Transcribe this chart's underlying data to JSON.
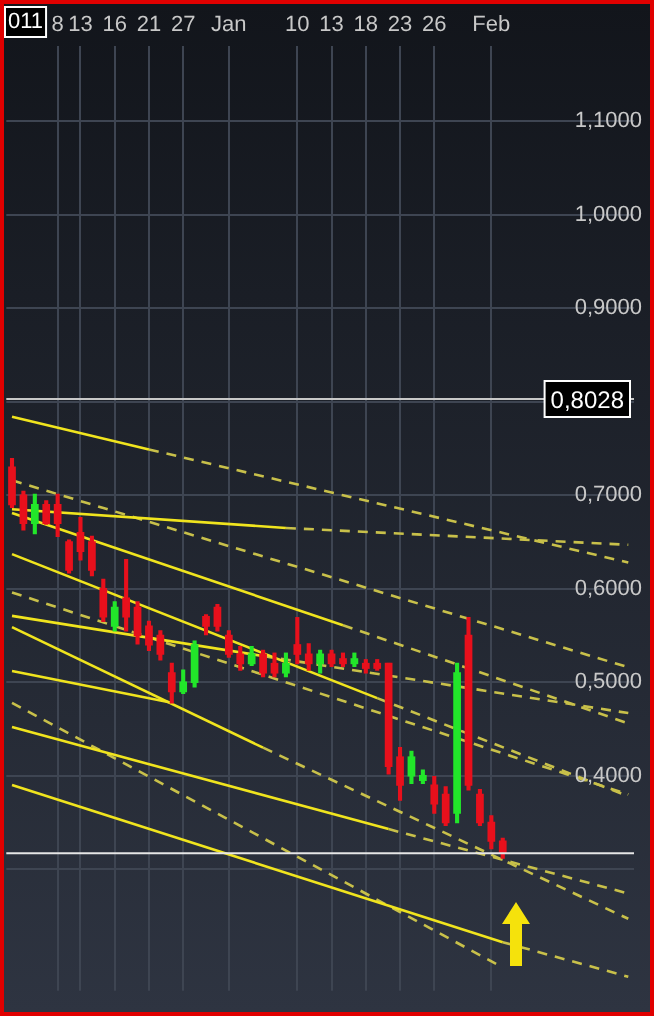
{
  "chart_data": {
    "type": "candlestick",
    "categories": [
      null,
      null,
      null,
      null,
      "8",
      null,
      "13",
      null,
      null,
      "16",
      null,
      null,
      "21",
      null,
      null,
      "27",
      null,
      null,
      null,
      "Jan",
      null,
      null,
      null,
      null,
      null,
      "10",
      null,
      null,
      "13",
      null,
      null,
      "18",
      null,
      null,
      "23",
      null,
      null,
      "26",
      null,
      null,
      null,
      null,
      "Feb",
      null,
      null,
      null,
      null,
      null,
      null,
      null,
      null,
      null,
      null,
      null,
      null
    ],
    "ohlc": [
      [
        0.73,
        0.739,
        0.687,
        0.69
      ],
      [
        0.7,
        0.704,
        0.663,
        0.67
      ],
      [
        0.67,
        0.701,
        0.659,
        0.69
      ],
      [
        0.69,
        0.694,
        0.669,
        0.67
      ],
      [
        0.69,
        0.701,
        0.656,
        0.67
      ],
      [
        0.65,
        0.652,
        0.617,
        0.62
      ],
      [
        0.66,
        0.676,
        0.631,
        0.64
      ],
      [
        0.65,
        0.656,
        0.614,
        0.62
      ],
      [
        0.6,
        0.61,
        0.565,
        0.57
      ],
      [
        0.56,
        0.586,
        0.555,
        0.58
      ],
      [
        0.59,
        0.631,
        0.555,
        0.57
      ],
      [
        0.58,
        0.586,
        0.541,
        0.55
      ],
      [
        0.56,
        0.565,
        0.534,
        0.54
      ],
      [
        0.55,
        0.555,
        0.524,
        0.53
      ],
      [
        0.51,
        0.52,
        0.478,
        0.49
      ],
      [
        0.49,
        0.513,
        0.488,
        0.5
      ],
      [
        0.5,
        0.544,
        0.495,
        0.54
      ],
      [
        0.57,
        0.572,
        0.551,
        0.56
      ],
      [
        0.58,
        0.583,
        0.555,
        0.56
      ],
      [
        0.55,
        0.555,
        0.527,
        0.53
      ],
      [
        0.53,
        0.538,
        0.513,
        0.52
      ],
      [
        0.52,
        0.538,
        0.518,
        0.53
      ],
      [
        0.53,
        0.534,
        0.506,
        0.51
      ],
      [
        0.52,
        0.531,
        0.506,
        0.51
      ],
      [
        0.51,
        0.531,
        0.506,
        0.52
      ],
      [
        0.54,
        0.569,
        0.52,
        0.53
      ],
      [
        0.53,
        0.541,
        0.513,
        0.52
      ],
      [
        0.52,
        0.534,
        0.51,
        0.53
      ],
      [
        0.53,
        0.534,
        0.517,
        0.52
      ],
      [
        0.525,
        0.531,
        0.517,
        0.52
      ],
      [
        0.52,
        0.531,
        0.517,
        0.525
      ],
      [
        0.52,
        0.524,
        0.51,
        0.515
      ],
      [
        0.52,
        0.524,
        0.513,
        0.515
      ],
      [
        0.52,
        0.52,
        0.402,
        0.41
      ],
      [
        0.42,
        0.43,
        0.374,
        0.39
      ],
      [
        0.4,
        0.426,
        0.392,
        0.42
      ],
      [
        0.395,
        0.406,
        0.392,
        0.4
      ],
      [
        0.39,
        0.399,
        0.36,
        0.37
      ],
      [
        0.38,
        0.388,
        0.347,
        0.35
      ],
      [
        0.36,
        0.52,
        0.35,
        0.51
      ],
      [
        0.55,
        0.569,
        0.385,
        0.39
      ],
      [
        0.38,
        0.385,
        0.347,
        0.35
      ],
      [
        0.35,
        0.357,
        0.322,
        0.33
      ],
      [
        0.33,
        0.333,
        0.312,
        0.317
      ],
      null,
      null,
      null,
      null,
      null,
      null,
      null,
      null,
      null,
      null,
      null
    ],
    "colors": [
      "#e8101c",
      "#e8101c",
      "#22e62a",
      "#e8101c",
      "#e8101c",
      "#e8101c",
      "#e8101c",
      "#e8101c",
      "#e8101c",
      "#22e62a",
      "#e8101c",
      "#e8101c",
      "#e8101c",
      "#e8101c",
      "#e8101c",
      "#22e62a",
      "#22e62a",
      "#e8101c",
      "#e8101c",
      "#e8101c",
      "#e8101c",
      "#22e62a",
      "#e8101c",
      "#e8101c",
      "#22e62a",
      "#e8101c",
      "#e8101c",
      "#22e62a",
      "#e8101c",
      "#e8101c",
      "#22e62a",
      "#e8101c",
      "#e8101c",
      "#e8101c",
      "#e8101c",
      "#22e62a",
      "#22e62a",
      "#e8101c",
      "#e8101c",
      "#22e62a",
      "#e8101c",
      "#e8101c",
      "#e8101c",
      "#e8101c",
      null,
      null,
      null,
      null,
      null,
      null,
      null,
      null,
      null,
      null,
      null
    ],
    "series": [
      {
        "type": "line",
        "line_style": "solid",
        "color": "#f0e41e",
        "values": [
          0.784,
          null,
          null,
          null,
          null,
          null,
          null,
          null,
          null,
          null,
          null,
          null,
          0.749,
          null,
          null,
          null,
          null,
          null,
          null,
          null,
          null,
          null,
          null,
          null,
          null,
          null,
          null,
          null,
          null,
          null,
          null,
          null,
          null,
          null,
          null,
          null,
          null,
          null,
          null,
          null,
          null,
          null,
          null,
          null,
          null,
          null,
          null,
          null,
          null,
          null,
          null,
          null,
          null,
          null,
          null
        ]
      },
      {
        "type": "line",
        "line_style": "dashed",
        "color": "#c8c04a",
        "values": [
          null,
          null,
          null,
          null,
          null,
          null,
          null,
          null,
          null,
          null,
          null,
          null,
          0.749,
          null,
          null,
          null,
          null,
          null,
          null,
          null,
          null,
          null,
          null,
          null,
          null,
          null,
          null,
          null,
          null,
          null,
          null,
          null,
          null,
          null,
          null,
          null,
          null,
          null,
          null,
          null,
          null,
          null,
          null,
          null,
          null,
          null,
          null,
          null,
          null,
          null,
          null,
          null,
          null,
          null,
          0.628
        ]
      },
      {
        "type": "line",
        "line_style": "solid",
        "color": "#f0e41e",
        "values": [
          0.685,
          null,
          null,
          null,
          null,
          null,
          null,
          null,
          null,
          null,
          null,
          null,
          null,
          null,
          null,
          null,
          null,
          null,
          null,
          null,
          null,
          null,
          null,
          null,
          0.665,
          null,
          null,
          null,
          null,
          null,
          null,
          null,
          null,
          null,
          null,
          null,
          null,
          null,
          null,
          null,
          null,
          null,
          null,
          null,
          null,
          null,
          null,
          null,
          null,
          null,
          null,
          null,
          null,
          null,
          null
        ]
      },
      {
        "type": "line",
        "line_style": "dashed",
        "color": "#c8c04a",
        "values": [
          null,
          null,
          null,
          null,
          null,
          null,
          null,
          null,
          null,
          null,
          null,
          null,
          null,
          null,
          null,
          null,
          null,
          null,
          null,
          null,
          null,
          null,
          null,
          null,
          0.665,
          null,
          null,
          null,
          null,
          null,
          null,
          null,
          null,
          null,
          null,
          null,
          null,
          null,
          null,
          null,
          null,
          null,
          null,
          null,
          null,
          null,
          null,
          null,
          null,
          null,
          null,
          null,
          null,
          null,
          0.647
        ]
      },
      {
        "type": "line",
        "line_style": "solid",
        "color": "#f0e41e",
        "values": [
          0.681,
          null,
          null,
          null,
          null,
          null,
          null,
          null,
          null,
          null,
          null,
          null,
          null,
          null,
          null,
          null,
          null,
          null,
          null,
          null,
          null,
          null,
          null,
          null,
          null,
          null,
          null,
          null,
          null,
          0.561,
          null,
          null,
          null,
          null,
          null,
          null,
          null,
          null,
          null,
          null,
          null,
          null,
          null,
          null,
          null,
          null,
          null,
          null,
          null,
          null,
          null,
          null,
          null,
          null,
          null
        ]
      },
      {
        "type": "line",
        "line_style": "dashed",
        "color": "#c8c04a",
        "values": [
          null,
          null,
          null,
          null,
          null,
          null,
          null,
          null,
          null,
          null,
          null,
          null,
          null,
          null,
          null,
          null,
          null,
          null,
          null,
          null,
          null,
          null,
          null,
          null,
          null,
          null,
          null,
          null,
          null,
          0.561,
          null,
          null,
          null,
          null,
          null,
          null,
          null,
          null,
          null,
          null,
          null,
          null,
          null,
          null,
          null,
          null,
          null,
          null,
          null,
          null,
          null,
          null,
          null,
          null,
          0.456
        ]
      },
      {
        "type": "line",
        "line_style": "solid",
        "color": "#f0e41e",
        "values": [
          0.637,
          null,
          null,
          null,
          null,
          null,
          null,
          null,
          null,
          null,
          null,
          null,
          null,
          null,
          null,
          null,
          null,
          null,
          null,
          null,
          null,
          null,
          null,
          null,
          null,
          null,
          null,
          null,
          null,
          null,
          null,
          null,
          0.483,
          null,
          null,
          null,
          null,
          null,
          null,
          null,
          null,
          null,
          null,
          null,
          null,
          null,
          null,
          null,
          null,
          null,
          null,
          null,
          null,
          null,
          null
        ]
      },
      {
        "type": "line",
        "line_style": "dashed",
        "color": "#c8c04a",
        "values": [
          null,
          null,
          null,
          null,
          null,
          null,
          null,
          null,
          null,
          null,
          null,
          null,
          null,
          null,
          null,
          null,
          null,
          null,
          null,
          null,
          null,
          null,
          null,
          null,
          null,
          null,
          null,
          null,
          null,
          null,
          null,
          null,
          0.483,
          null,
          null,
          null,
          null,
          null,
          null,
          null,
          null,
          null,
          null,
          null,
          null,
          null,
          null,
          null,
          null,
          null,
          null,
          null,
          null,
          null,
          0.378
        ]
      },
      {
        "type": "line",
        "line_style": "solid",
        "color": "#f0e41e",
        "values": [
          0.571,
          null,
          null,
          null,
          null,
          null,
          null,
          null,
          null,
          null,
          null,
          null,
          null,
          null,
          null,
          null,
          null,
          null,
          null,
          null,
          null,
          null,
          0.528,
          null,
          null,
          null,
          null,
          null,
          null,
          null,
          null,
          null,
          null,
          null,
          null,
          null,
          null,
          null,
          null,
          null,
          null,
          null,
          null,
          null,
          null,
          null,
          null,
          null,
          null,
          null,
          null,
          null,
          null,
          null,
          null
        ]
      },
      {
        "type": "line",
        "line_style": "dashed",
        "color": "#c8c04a",
        "values": [
          null,
          null,
          null,
          null,
          null,
          null,
          null,
          null,
          null,
          null,
          null,
          null,
          null,
          null,
          null,
          null,
          null,
          null,
          null,
          null,
          null,
          null,
          0.528,
          null,
          null,
          null,
          null,
          null,
          null,
          null,
          null,
          null,
          null,
          null,
          null,
          null,
          null,
          null,
          null,
          null,
          null,
          null,
          null,
          null,
          null,
          null,
          null,
          null,
          null,
          null,
          null,
          null,
          null,
          null,
          0.467
        ]
      },
      {
        "type": "line",
        "line_style": "solid",
        "color": "#f0e41e",
        "values": [
          0.559,
          null,
          null,
          null,
          null,
          null,
          null,
          null,
          null,
          null,
          null,
          null,
          null,
          null,
          null,
          null,
          null,
          null,
          null,
          null,
          null,
          null,
          0.43,
          null,
          null,
          null,
          null,
          null,
          null,
          null,
          null,
          null,
          null,
          null,
          null,
          null,
          null,
          null,
          null,
          null,
          null,
          null,
          null,
          null,
          null,
          null,
          null,
          null,
          null,
          null,
          null,
          null,
          null,
          null,
          null
        ]
      },
      {
        "type": "line",
        "line_style": "dashed",
        "color": "#c8c04a",
        "values": [
          null,
          null,
          null,
          null,
          null,
          null,
          null,
          null,
          null,
          null,
          null,
          null,
          null,
          null,
          null,
          null,
          null,
          null,
          null,
          null,
          null,
          null,
          0.43,
          null,
          null,
          null,
          null,
          null,
          null,
          null,
          null,
          null,
          null,
          null,
          null,
          null,
          null,
          null,
          null,
          null,
          null,
          null,
          null,
          null,
          null,
          null,
          null,
          null,
          null,
          null,
          null,
          null,
          null,
          null,
          0.247
        ]
      },
      {
        "type": "line",
        "line_style": "solid",
        "color": "#f0e41e",
        "values": [
          0.512,
          null,
          null,
          null,
          null,
          null,
          null,
          null,
          null,
          null,
          null,
          null,
          null,
          null,
          0.478,
          null,
          null,
          null,
          null,
          null,
          null,
          null,
          null,
          null,
          null,
          null,
          null,
          null,
          null,
          null,
          null,
          null,
          null,
          null,
          null,
          null,
          null,
          null,
          null,
          null,
          null,
          null,
          null,
          null,
          null,
          null,
          null,
          null,
          null,
          null,
          null,
          null,
          null,
          null,
          null
        ]
      },
      {
        "type": "line",
        "line_style": "solid",
        "color": "#f0e41e",
        "values": [
          0.452,
          null,
          null,
          null,
          null,
          null,
          null,
          null,
          null,
          null,
          null,
          null,
          null,
          null,
          null,
          null,
          null,
          null,
          null,
          null,
          null,
          null,
          null,
          null,
          null,
          null,
          null,
          null,
          null,
          null,
          null,
          null,
          null,
          0.343,
          null,
          null,
          null,
          null,
          null,
          null,
          null,
          null,
          null,
          null,
          null,
          null,
          null,
          null,
          null,
          null,
          null,
          null,
          null,
          null,
          null
        ]
      },
      {
        "type": "line",
        "line_style": "dashed",
        "color": "#c8c04a",
        "values": [
          null,
          null,
          null,
          null,
          null,
          null,
          null,
          null,
          null,
          null,
          null,
          null,
          null,
          null,
          null,
          null,
          null,
          null,
          null,
          null,
          null,
          null,
          null,
          null,
          null,
          null,
          null,
          null,
          null,
          null,
          null,
          null,
          null,
          0.343,
          null,
          null,
          null,
          null,
          null,
          null,
          null,
          null,
          null,
          null,
          null,
          null,
          null,
          null,
          null,
          null,
          null,
          null,
          null,
          null,
          0.274
        ]
      },
      {
        "type": "line",
        "line_style": "solid",
        "color": "#f0e41e",
        "values": [
          0.39,
          null,
          null,
          null,
          null,
          null,
          null,
          null,
          null,
          null,
          null,
          null,
          null,
          null,
          null,
          null,
          null,
          null,
          null,
          null,
          null,
          null,
          null,
          null,
          null,
          null,
          null,
          null,
          null,
          null,
          null,
          null,
          null,
          null,
          null,
          null,
          null,
          null,
          null,
          null,
          null,
          null,
          null,
          0.222,
          null,
          null,
          null,
          null,
          null,
          null,
          null,
          null,
          null,
          null,
          null
        ]
      },
      {
        "type": "line",
        "line_style": "dashed",
        "color": "#c8c04a",
        "values": [
          null,
          null,
          null,
          null,
          null,
          null,
          null,
          null,
          null,
          null,
          null,
          null,
          null,
          null,
          null,
          null,
          null,
          null,
          null,
          null,
          null,
          null,
          null,
          null,
          null,
          null,
          null,
          null,
          null,
          null,
          null,
          null,
          null,
          null,
          null,
          null,
          null,
          null,
          null,
          null,
          null,
          null,
          null,
          0.222,
          null,
          null,
          null,
          null,
          null,
          null,
          null,
          null,
          null,
          null,
          0.185
        ]
      },
      {
        "type": "line",
        "line_style": "dashed",
        "color": "#c8c04a",
        "values": [
          0.716,
          null,
          null,
          null,
          null,
          null,
          null,
          null,
          null,
          null,
          null,
          null,
          null,
          null,
          null,
          null,
          null,
          null,
          null,
          null,
          null,
          null,
          null,
          null,
          null,
          null,
          null,
          null,
          null,
          null,
          null,
          null,
          null,
          null,
          null,
          null,
          null,
          null,
          null,
          null,
          null,
          null,
          null,
          null,
          null,
          null,
          null,
          null,
          null,
          null,
          null,
          null,
          null,
          null,
          0.516
        ]
      },
      {
        "type": "line",
        "line_style": "dashed",
        "color": "#c8c04a",
        "values": [
          0.596,
          null,
          null,
          null,
          null,
          null,
          null,
          null,
          null,
          null,
          null,
          null,
          null,
          null,
          null,
          null,
          null,
          null,
          null,
          null,
          null,
          null,
          null,
          null,
          null,
          null,
          null,
          null,
          null,
          null,
          null,
          null,
          null,
          null,
          null,
          null,
          null,
          null,
          null,
          null,
          null,
          null,
          null,
          null,
          null,
          null,
          null,
          null,
          null,
          null,
          null,
          null,
          null,
          null,
          0.38
        ]
      },
      {
        "type": "line",
        "line_style": "dashed",
        "color": "#c8c04a",
        "values": [
          0.478,
          null,
          null,
          null,
          null,
          null,
          null,
          null,
          null,
          null,
          null,
          null,
          null,
          null,
          null,
          null,
          null,
          null,
          null,
          null,
          null,
          null,
          null,
          null,
          null,
          null,
          null,
          null,
          null,
          null,
          null,
          null,
          null,
          null,
          null,
          null,
          null,
          null,
          null,
          null,
          null,
          null,
          null,
          0.195,
          null,
          null,
          null,
          null,
          null,
          null,
          null,
          null,
          null,
          null,
          null
        ]
      }
    ],
    "ylim": [
      0.17,
      1.18
    ],
    "yticks": [
      {
        "value": 0.3,
        "label": null
      },
      {
        "value": 0.4,
        "label": "0,4000"
      },
      {
        "value": 0.5,
        "label": "0,5000"
      },
      {
        "value": 0.6,
        "label": "0,6000"
      },
      {
        "value": 0.7,
        "label": "0,7000"
      },
      {
        "value": 0.8,
        "label": null
      },
      {
        "value": 0.9,
        "label": "0,9000"
      },
      {
        "value": 1.0,
        "label": "1,0000"
      },
      {
        "value": 1.1,
        "label": "1,1000"
      }
    ],
    "ref_lines": [
      {
        "axis": "y",
        "value": 0.8028,
        "label": "0,8028",
        "color": "#c8c8c8"
      },
      {
        "axis": "y",
        "value": 0.317,
        "color": "#e6e6e6"
      }
    ],
    "annotations": [
      "011"
    ],
    "grid": true,
    "legend": false
  }
}
